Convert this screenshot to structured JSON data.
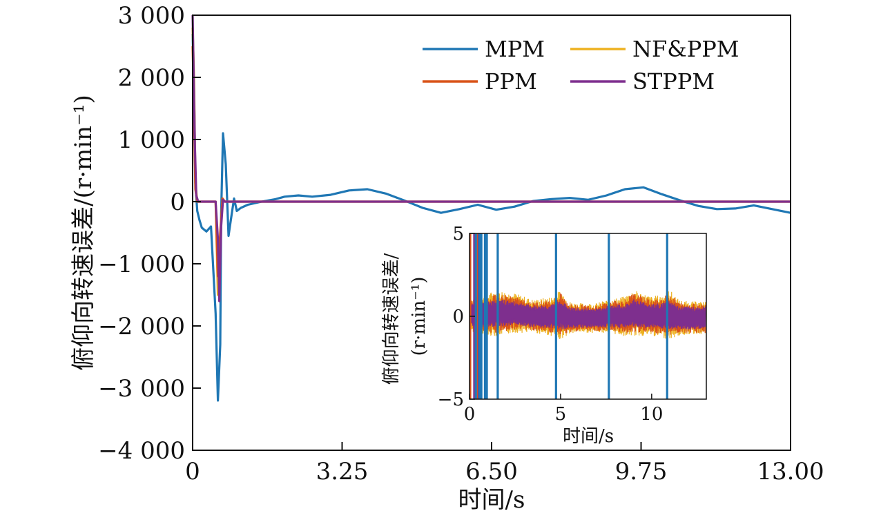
{
  "chart_data": [
    {
      "type": "line",
      "xlabel": "时间/s",
      "ylabel": "俯仰向转速误差/(r·min⁻¹)",
      "xlim": [
        0,
        13
      ],
      "ylim": [
        -4000,
        3000
      ],
      "x_ticks": [
        0,
        3.25,
        6.5,
        9.75,
        13
      ],
      "x_tick_labels": [
        "0",
        "3.25",
        "6.50",
        "9.75",
        "13.00"
      ],
      "y_ticks": [
        3000,
        2000,
        1000,
        0,
        -1000,
        -2000,
        -3000,
        -4000
      ],
      "y_tick_labels": [
        "3 000",
        "2 000",
        "1 000",
        "0",
        "−1 000",
        "−2 000",
        "−3 000",
        "−4 000"
      ],
      "legend_position": "top-right",
      "grid": false,
      "series": [
        {
          "name": "MPM",
          "color": "#1f77b4",
          "x": [
            0,
            0.03,
            0.06,
            0.1,
            0.15,
            0.2,
            0.3,
            0.4,
            0.5,
            0.55,
            0.6,
            0.62,
            0.66,
            0.72,
            0.78,
            0.85,
            0.9,
            0.96,
            1.05,
            1.2,
            1.5,
            1.8,
            2.0,
            2.3,
            2.6,
            3.0,
            3.4,
            3.8,
            4.2,
            4.6,
            5.0,
            5.4,
            5.8,
            6.2,
            6.6,
            7.0,
            7.4,
            7.8,
            8.2,
            8.6,
            9.0,
            9.4,
            9.8,
            10.2,
            10.6,
            11.0,
            11.4,
            11.8,
            12.2,
            12.6,
            13.0
          ],
          "y": [
            2700,
            1800,
            300,
            -150,
            -300,
            -420,
            -480,
            -400,
            -1800,
            -3200,
            -2300,
            -200,
            1100,
            600,
            -550,
            -200,
            50,
            -150,
            -100,
            -50,
            0,
            40,
            80,
            100,
            80,
            110,
            180,
            200,
            130,
            20,
            -100,
            -180,
            -120,
            -50,
            -130,
            -80,
            10,
            40,
            60,
            30,
            100,
            200,
            230,
            120,
            20,
            -70,
            -120,
            -110,
            -60,
            -120,
            -180
          ]
        },
        {
          "name": "PPM",
          "color": "#d95319",
          "x": [
            0,
            0.03,
            0.06,
            0.1,
            0.2,
            0.3,
            0.4,
            0.45,
            0.5,
            0.55,
            0.6,
            0.65,
            0.7,
            0.8,
            1.0,
            2.0,
            4.0,
            6.0,
            8.0,
            10.0,
            13.0
          ],
          "y": [
            2500,
            1500,
            200,
            0,
            0,
            0,
            0,
            0,
            0,
            -1200,
            -500,
            50,
            0,
            0,
            0,
            0,
            0,
            0,
            0,
            0,
            0
          ]
        },
        {
          "name": "NF&PPM",
          "color": "#edb120",
          "x": [
            0,
            0.03,
            0.06,
            0.1,
            0.2,
            0.3,
            0.4,
            0.45,
            0.5,
            0.55,
            0.6,
            0.65,
            0.7,
            0.8,
            1.0,
            2.0,
            4.0,
            6.0,
            8.0,
            10.0,
            13.0
          ],
          "y": [
            2800,
            2000,
            300,
            0,
            0,
            0,
            0,
            0,
            0,
            -1500,
            -600,
            50,
            0,
            0,
            0,
            0,
            0,
            0,
            0,
            0,
            0
          ]
        },
        {
          "name": "STPPM",
          "color": "#7e2f8e",
          "x": [
            0,
            0.02,
            0.05,
            0.08,
            0.12,
            0.2,
            0.3,
            0.4,
            0.5,
            0.55,
            0.58,
            0.62,
            0.66,
            0.7,
            0.8,
            1.0,
            2.0,
            4.0,
            6.0,
            8.0,
            10.0,
            13.0
          ],
          "y": [
            3000,
            2200,
            900,
            100,
            0,
            0,
            0,
            0,
            0,
            -600,
            -1600,
            -400,
            30,
            0,
            0,
            0,
            0,
            0,
            0,
            0,
            0,
            0
          ]
        }
      ]
    },
    {
      "type": "line",
      "xlabel": "时间/s",
      "ylabel_line1": "俯仰向转速误差/",
      "ylabel_line2": "(r·min⁻¹)",
      "xlim": [
        0,
        13
      ],
      "ylim": [
        -5,
        5
      ],
      "x_ticks": [
        0,
        5,
        10
      ],
      "x_tick_labels": [
        "0",
        "5",
        "10"
      ],
      "y_ticks": [
        5,
        0,
        -5
      ],
      "y_tick_labels": [
        "5",
        "0",
        "−5"
      ],
      "grid": false,
      "mpm_spike_times": [
        0.35,
        0.55,
        0.65,
        0.85,
        0.95,
        1.55,
        4.75,
        7.65,
        10.85
      ],
      "early_transient_times": [
        0.05,
        0.25,
        0.45,
        0.5
      ],
      "band_x": [
        0.1,
        0.5,
        1.0,
        1.5,
        2.0,
        2.5,
        3.0,
        3.5,
        4.0,
        4.5,
        5.0,
        5.5,
        6.0,
        6.5,
        7.0,
        7.5,
        8.0,
        8.5,
        9.0,
        9.5,
        10.0,
        10.5,
        11.0,
        11.5,
        12.0,
        12.5,
        13.0
      ],
      "nf_ppm_envelope": [
        1.1,
        1.1,
        1.3,
        1.4,
        1.3,
        1.2,
        1.1,
        1.0,
        1.1,
        1.2,
        1.5,
        1.0,
        0.9,
        0.9,
        0.9,
        1.0,
        1.1,
        1.2,
        1.4,
        1.3,
        1.2,
        1.3,
        1.5,
        1.1,
        1.0,
        1.0,
        1.0
      ],
      "ppm_envelope": [
        0.9,
        0.9,
        1.1,
        1.2,
        1.1,
        1.0,
        0.9,
        0.85,
        0.95,
        1.0,
        1.3,
        0.85,
        0.8,
        0.8,
        0.8,
        0.85,
        0.95,
        1.0,
        1.2,
        1.1,
        1.0,
        1.1,
        1.3,
        0.95,
        0.9,
        0.9,
        0.9
      ],
      "stppm_envelope": [
        0.7,
        0.7,
        0.8,
        0.8,
        0.8,
        0.7,
        0.7,
        0.65,
        0.7,
        0.7,
        0.9,
        0.65,
        0.6,
        0.6,
        0.6,
        0.65,
        0.7,
        0.7,
        0.85,
        0.8,
        0.75,
        0.8,
        0.9,
        0.7,
        0.7,
        0.7,
        0.7
      ],
      "band_center": [
        0.1,
        0.1,
        0.1,
        0.2,
        0.2,
        0.2,
        0.1,
        0.0,
        0.0,
        0.0,
        0.1,
        -0.1,
        -0.1,
        -0.1,
        -0.1,
        0.0,
        0.0,
        0.0,
        0.2,
        0.1,
        0.0,
        0.0,
        0.1,
        -0.1,
        -0.1,
        -0.1,
        -0.1
      ]
    }
  ]
}
